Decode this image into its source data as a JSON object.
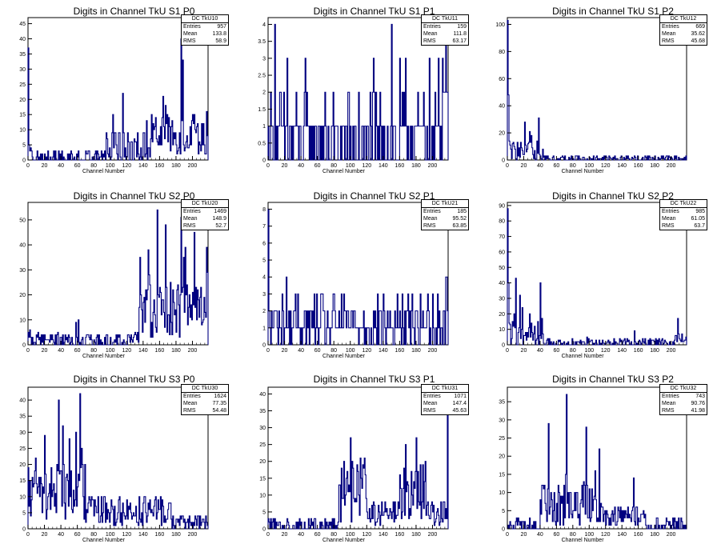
{
  "chart_data": [
    {
      "type": "bar",
      "hist_name": "DC_TkU10",
      "title": "Digits in Channel TkU S1 P0",
      "xlabel": "Channel Number",
      "ylabel": "",
      "xlim": [
        0,
        219
      ],
      "ylim": [
        0,
        47
      ],
      "xticks": [
        0,
        20,
        40,
        60,
        80,
        100,
        120,
        140,
        160,
        180,
        200
      ],
      "yticks": [
        0,
        5,
        10,
        15,
        20,
        25,
        30,
        35,
        40,
        45
      ],
      "stats": {
        "entries": "957",
        "mean": "133.8",
        "rms": "58.9"
      },
      "shape": "s1p0"
    },
    {
      "type": "bar",
      "hist_name": "DC_TkU11",
      "title": "Digits in Channel TkU S1 P1",
      "xlabel": "Channel Number",
      "ylabel": "",
      "xlim": [
        0,
        219
      ],
      "ylim": [
        0,
        4.2
      ],
      "xticks": [
        0,
        20,
        40,
        60,
        80,
        100,
        120,
        140,
        160,
        180,
        200
      ],
      "yticks": [
        0,
        0.5,
        1,
        1.5,
        2,
        2.5,
        3,
        3.5,
        4
      ],
      "stats": {
        "entries": "159",
        "mean": "111.8",
        "rms": "63.17"
      },
      "shape": "s1p1"
    },
    {
      "type": "bar",
      "hist_name": "DC_TkU12",
      "title": "Digits in Channel TkU S1 P2",
      "xlabel": "Channel Number",
      "ylabel": "",
      "xlim": [
        0,
        219
      ],
      "ylim": [
        0,
        105
      ],
      "xticks": [
        0,
        20,
        40,
        60,
        80,
        100,
        120,
        140,
        160,
        180,
        200
      ],
      "yticks": [
        0,
        20,
        40,
        60,
        80,
        100
      ],
      "stats": {
        "entries": "669",
        "mean": "35.62",
        "rms": "45.68"
      },
      "shape": "s1p2"
    },
    {
      "type": "bar",
      "hist_name": "DC_TkU20",
      "title": "Digits in Channel TkU S2 P0",
      "xlabel": "Channel Number",
      "ylabel": "",
      "xlim": [
        0,
        219
      ],
      "ylim": [
        0,
        57
      ],
      "xticks": [
        0,
        20,
        40,
        60,
        80,
        100,
        120,
        140,
        160,
        180,
        200
      ],
      "yticks": [
        0,
        10,
        20,
        30,
        40,
        50
      ],
      "stats": {
        "entries": "1469",
        "mean": "148.9",
        "rms": "52.7"
      },
      "shape": "s2p0"
    },
    {
      "type": "bar",
      "hist_name": "DC_TkU21",
      "title": "Digits in Channel TkU S2 P1",
      "xlabel": "Channel Number",
      "ylabel": "",
      "xlim": [
        0,
        219
      ],
      "ylim": [
        0,
        8.4
      ],
      "xticks": [
        0,
        20,
        40,
        60,
        80,
        100,
        120,
        140,
        160,
        180,
        200
      ],
      "yticks": [
        0,
        1,
        2,
        3,
        4,
        5,
        6,
        7,
        8
      ],
      "stats": {
        "entries": "185",
        "mean": "95.52",
        "rms": "63.85"
      },
      "shape": "s2p1"
    },
    {
      "type": "bar",
      "hist_name": "DC_TkU22",
      "title": "Digits in Channel TkU S2 P2",
      "xlabel": "Channel Number",
      "ylabel": "",
      "xlim": [
        0,
        219
      ],
      "ylim": [
        0,
        92
      ],
      "xticks": [
        0,
        20,
        40,
        60,
        80,
        100,
        120,
        140,
        160,
        180,
        200
      ],
      "yticks": [
        0,
        10,
        20,
        30,
        40,
        50,
        60,
        70,
        80,
        90
      ],
      "stats": {
        "entries": "985",
        "mean": "61.05",
        "rms": "63.7"
      },
      "shape": "s2p2"
    },
    {
      "type": "bar",
      "hist_name": "DC_TkU30",
      "title": "Digits in Channel TkU S3 P0",
      "xlabel": "Channel Number",
      "ylabel": "",
      "xlim": [
        0,
        219
      ],
      "ylim": [
        0,
        44
      ],
      "xticks": [
        0,
        20,
        40,
        60,
        80,
        100,
        120,
        140,
        160,
        180,
        200
      ],
      "yticks": [
        0,
        5,
        10,
        15,
        20,
        25,
        30,
        35,
        40
      ],
      "stats": {
        "entries": "1624",
        "mean": "77.35",
        "rms": "54.48"
      },
      "shape": "s3p0"
    },
    {
      "type": "bar",
      "hist_name": "DC_TkU31",
      "title": "Digits in Channel TkU S3 P1",
      "xlabel": "Channel Number",
      "ylabel": "",
      "xlim": [
        0,
        219
      ],
      "ylim": [
        0,
        42
      ],
      "xticks": [
        0,
        20,
        40,
        60,
        80,
        100,
        120,
        140,
        160,
        180,
        200
      ],
      "yticks": [
        0,
        5,
        10,
        15,
        20,
        25,
        30,
        35,
        40
      ],
      "stats": {
        "entries": "1071",
        "mean": "147.4",
        "rms": "45.63"
      },
      "shape": "s3p1"
    },
    {
      "type": "bar",
      "hist_name": "DC_TkU32",
      "title": "Digits in Channel TkU S3 P2",
      "xlabel": "Channel Number",
      "ylabel": "",
      "xlim": [
        0,
        219
      ],
      "ylim": [
        0,
        39
      ],
      "xticks": [
        0,
        20,
        40,
        60,
        80,
        100,
        120,
        140,
        160,
        180,
        200
      ],
      "yticks": [
        0,
        5,
        10,
        15,
        20,
        25,
        30,
        35
      ],
      "stats": {
        "entries": "743",
        "mean": "90.76",
        "rms": "41.98"
      },
      "shape": "s3p2"
    }
  ],
  "stat_labels": {
    "entries": "Entries",
    "mean": "Mean",
    "rms": "RMS"
  },
  "colors": {
    "line": "#000080",
    "axis": "#000000"
  }
}
